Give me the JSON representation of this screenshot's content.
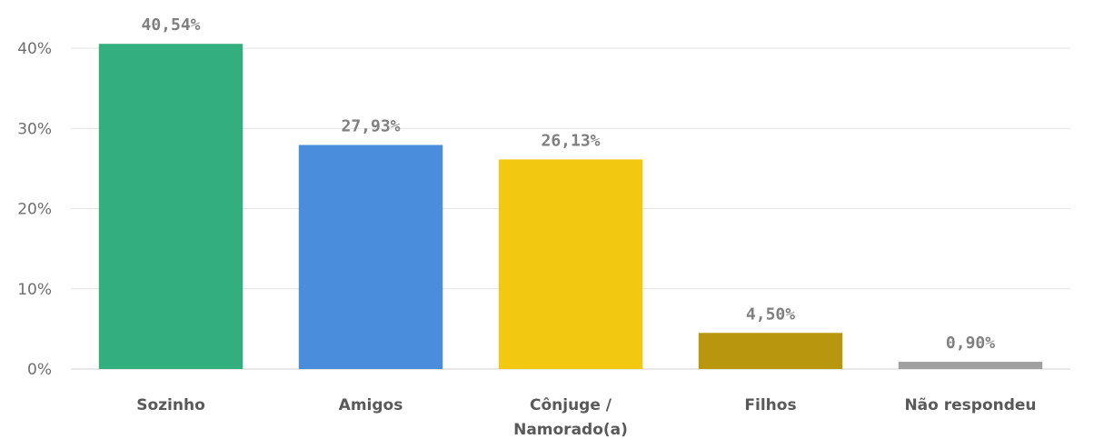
{
  "chart_data": {
    "type": "bar",
    "title": "",
    "xlabel": "",
    "ylabel": "",
    "categories": [
      "Sozinho",
      "Amigos",
      "Cônjuge / Namorado(a)",
      "Filhos",
      "Não respondeu"
    ],
    "category_lines": [
      [
        "Sozinho"
      ],
      [
        "Amigos"
      ],
      [
        "Cônjuge /",
        "Namorado(a)"
      ],
      [
        "Filhos"
      ],
      [
        "Não respondeu"
      ]
    ],
    "values": [
      40.54,
      27.93,
      26.13,
      4.5,
      0.9
    ],
    "data_labels": [
      "40,54%",
      "27,93%",
      "26,13%",
      "4,50%",
      "0,90%"
    ],
    "colors": [
      "#33ae7f",
      "#4a8ddc",
      "#f2c811",
      "#b8960e",
      "#a0a0a0"
    ],
    "ylim": [
      0,
      40
    ],
    "yticks": [
      0,
      10,
      20,
      30,
      40
    ],
    "ytick_labels": [
      "0%",
      "10%",
      "20%",
      "30%",
      "40%"
    ],
    "grid": true,
    "legend": "none"
  }
}
